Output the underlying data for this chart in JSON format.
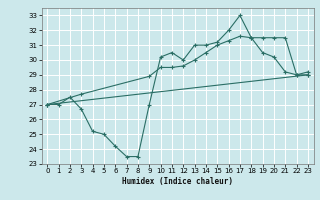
{
  "line1_x": [
    0,
    1,
    2,
    3,
    4,
    5,
    6,
    7,
    8,
    9,
    10,
    11,
    12,
    13,
    14,
    15,
    16,
    17,
    18,
    19,
    20,
    21,
    22,
    23
  ],
  "line1_y": [
    27,
    27,
    27.5,
    26.7,
    25.2,
    25.0,
    24.2,
    23.5,
    23.5,
    27.0,
    30.2,
    30.5,
    30.0,
    31.0,
    31.0,
    31.2,
    32.0,
    33.0,
    31.5,
    30.5,
    30.2,
    29.2,
    29.0,
    29.0
  ],
  "line2_x": [
    0,
    23
  ],
  "line2_y": [
    27.0,
    29.0
  ],
  "line3_x": [
    0,
    3,
    9,
    10,
    11,
    12,
    13,
    14,
    15,
    16,
    17,
    18,
    19,
    20,
    21,
    22,
    23
  ],
  "line3_y": [
    27.0,
    27.7,
    28.9,
    29.5,
    29.5,
    29.6,
    30.0,
    30.5,
    31.0,
    31.3,
    31.6,
    31.5,
    31.5,
    31.5,
    31.5,
    29.0,
    29.2
  ],
  "color": "#2a6e65",
  "bg_color": "#cce8eb",
  "grid_color": "#ffffff",
  "xlabel": "Humidex (Indice chaleur)",
  "ylim": [
    23,
    33.5
  ],
  "xlim": [
    -0.5,
    23.5
  ],
  "yticks": [
    23,
    24,
    25,
    26,
    27,
    28,
    29,
    30,
    31,
    32,
    33
  ],
  "xticks": [
    0,
    1,
    2,
    3,
    4,
    5,
    6,
    7,
    8,
    9,
    10,
    11,
    12,
    13,
    14,
    15,
    16,
    17,
    18,
    19,
    20,
    21,
    22,
    23
  ]
}
